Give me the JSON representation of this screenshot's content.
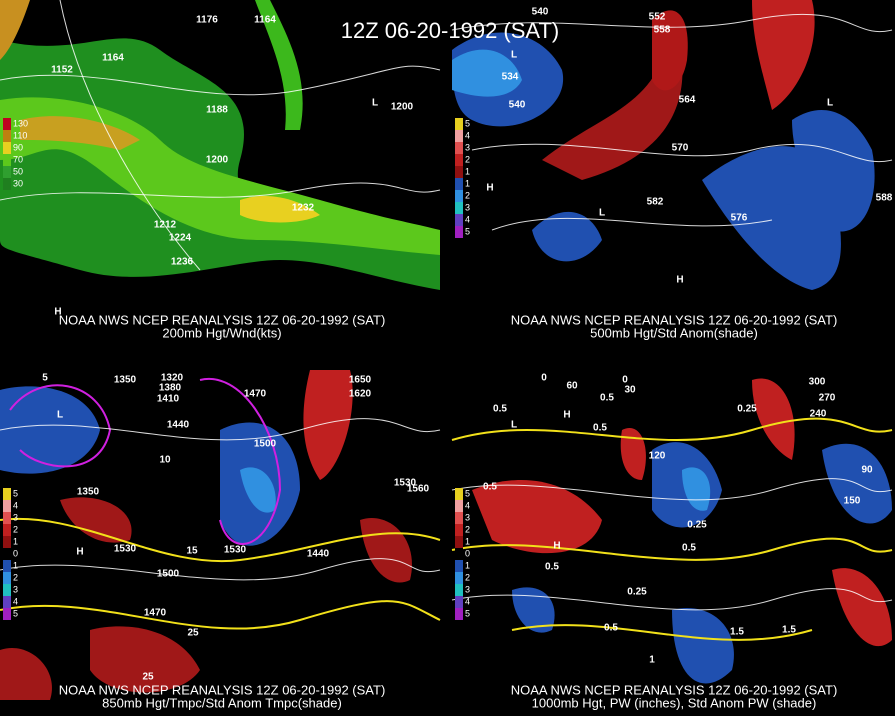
{
  "title": "12Z 06-20-1992 (SAT)",
  "panels": [
    {
      "caption": "NOAA NWS NCEP REANALYSIS 12Z 06-20-1992 (SAT)",
      "subcaption": "200mb Hgt/Wnd(kts)",
      "colorbar": [
        "130",
        "110",
        "90",
        "70",
        "50",
        "30"
      ],
      "labels": [
        "1176",
        "1164",
        "1152",
        "1164",
        "1188",
        "1200",
        "1200",
        "1212",
        "1224",
        "1236",
        "1232",
        "L",
        "H"
      ]
    },
    {
      "caption": "NOAA NWS NCEP REANALYSIS 12Z 06-20-1992 (SAT)",
      "subcaption": "500mb Hgt/Std Anom(shade)",
      "colorbar": [
        "5",
        "4",
        "3",
        "2",
        "1",
        "1",
        "2",
        "3",
        "4",
        "5"
      ],
      "labels": [
        "540",
        "552",
        "558",
        "564",
        "570",
        "582",
        "576",
        "540",
        "534",
        "588",
        "L",
        "H",
        "L",
        "H",
        "L"
      ]
    },
    {
      "caption": "NOAA NWS NCEP REANALYSIS 12Z 06-20-1992 (SAT)",
      "subcaption": "850mb Hgt/Tmpc/Std Anom Tmpc(shade)",
      "colorbar": [
        "5",
        "4",
        "3",
        "2",
        "1",
        "0",
        "1",
        "2",
        "3",
        "4",
        "5"
      ],
      "labels": [
        "1350",
        "1320",
        "1380",
        "1410",
        "1470",
        "1650",
        "1620",
        "1440",
        "1500",
        "1530",
        "1560",
        "1530",
        "1530",
        "1500",
        "1470",
        "1440",
        "1350",
        "L",
        "H",
        "5",
        "10",
        "15",
        "25",
        "25"
      ]
    },
    {
      "caption": "NOAA NWS NCEP REANALYSIS 12Z 06-20-1992 (SAT)",
      "subcaption": "1000mb Hgt, PW (inches), Std Anom PW (shade)",
      "colorbar": [
        "5",
        "4",
        "3",
        "2",
        "1",
        "0",
        "1",
        "2",
        "3",
        "4",
        "5"
      ],
      "labels": [
        "0",
        "60",
        "0",
        "30",
        "300",
        "270",
        "240",
        "0.5",
        "0.5",
        "0.5",
        "0.25",
        "120",
        "150",
        "90",
        "0.5",
        "0.5",
        "0.25",
        "0.5",
        "0.25",
        "1.5",
        "1.5",
        "1",
        "0.5",
        "L",
        "H",
        "H"
      ]
    }
  ]
}
